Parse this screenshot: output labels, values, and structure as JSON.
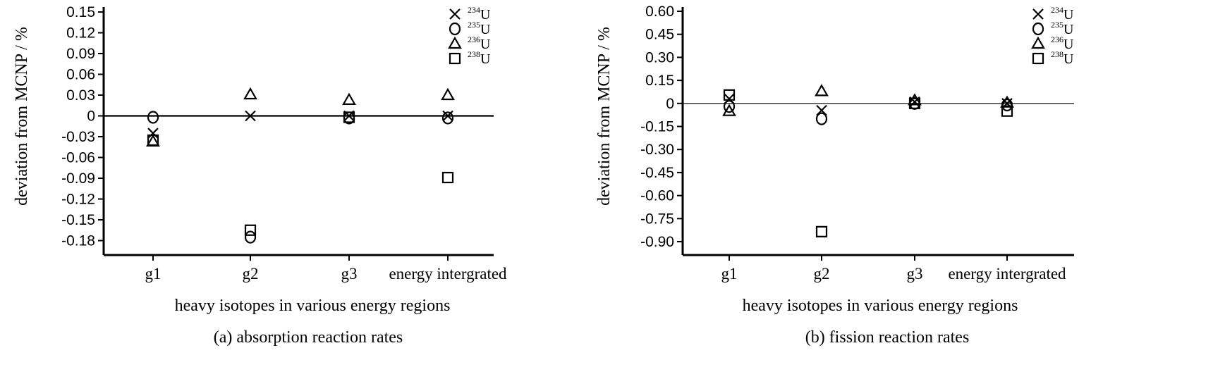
{
  "chart_data": [
    {
      "type": "scatter",
      "caption": "(a) absorption reaction rates",
      "xlabel": "heavy isotopes in various energy regions",
      "ylabel": "deviation from MCNP / %",
      "categories": [
        "g1",
        "g2",
        "g3",
        "energy intergrated"
      ],
      "ylim": [
        -0.195,
        0.15
      ],
      "yticks": [
        "0.15",
        "0.12",
        "0.09",
        "0.06",
        "0.03",
        "0",
        "-0.03",
        "-0.06",
        "-0.09",
        "-0.12",
        "-0.15",
        "-0.18"
      ],
      "legend_position": "top-right",
      "series": [
        {
          "name": "234",
          "name_suffix": "U",
          "marker": "cross",
          "values": [
            -0.025,
            0.0,
            0.0,
            0.0
          ]
        },
        {
          "name": "235",
          "name_suffix": "U",
          "marker": "circle",
          "values": [
            -0.002,
            -0.175,
            -0.003,
            -0.003
          ]
        },
        {
          "name": "236",
          "name_suffix": "U",
          "marker": "triangle",
          "values": [
            -0.037,
            0.031,
            0.023,
            0.03
          ]
        },
        {
          "name": "238",
          "name_suffix": "U",
          "marker": "square",
          "values": [
            -0.035,
            -0.165,
            -0.002,
            -0.089
          ]
        }
      ]
    },
    {
      "type": "scatter",
      "caption": "(b) fission reaction rates",
      "xlabel": "heavy isotopes in various energy regions",
      "ylabel": "deviation from MCNP / %",
      "categories": [
        "g1",
        "g2",
        "g3",
        "energy intergrated"
      ],
      "ylim": [
        -0.98,
        0.6
      ],
      "yticks": [
        "0.60",
        "0.45",
        "0.30",
        "0.15",
        "0",
        "-0.15",
        "-0.30",
        "-0.45",
        "-0.60",
        "-0.75",
        "-0.90"
      ],
      "legend_position": "top-right",
      "series": [
        {
          "name": "234",
          "name_suffix": "U",
          "marker": "cross",
          "values": [
            0.03,
            -0.045,
            0.01,
            0.0
          ]
        },
        {
          "name": "235",
          "name_suffix": "U",
          "marker": "circle",
          "values": [
            -0.02,
            -0.1,
            0.0,
            -0.01
          ]
        },
        {
          "name": "236",
          "name_suffix": "U",
          "marker": "triangle",
          "values": [
            -0.05,
            0.08,
            0.02,
            0.005
          ]
        },
        {
          "name": "238",
          "name_suffix": "U",
          "marker": "square",
          "values": [
            0.055,
            -0.835,
            0.0,
            -0.05
          ]
        }
      ]
    }
  ]
}
